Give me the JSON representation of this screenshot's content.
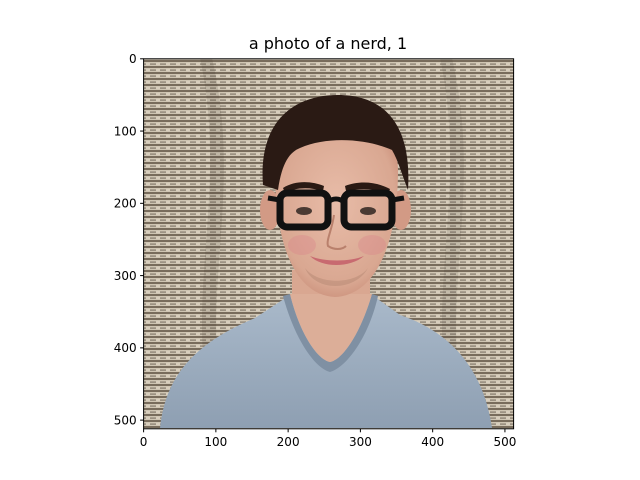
{
  "figure": {
    "title": "a photo of a nerd, 1"
  },
  "image": {
    "subject": "young man with dark hair wearing thick black rectangular glasses and a light blue-gray v-neck t-shirt, smiling, in front of a woven beige and brown fabric backdrop",
    "colors": {
      "fabric_light": "#cfc5b3",
      "fabric_dark": "#5a4e3f",
      "hair": "#2a1a14",
      "skin": "#e2b5a0",
      "skin_shadow": "#c98d78",
      "glasses": "#111111",
      "shirt": "#9fb0c2",
      "shirt_shadow": "#7f90a3",
      "lips": "#c86a70"
    }
  },
  "axes": {
    "x_ticks": [
      {
        "value": 0,
        "label": "0"
      },
      {
        "value": 100,
        "label": "100"
      },
      {
        "value": 200,
        "label": "200"
      },
      {
        "value": 300,
        "label": "300"
      },
      {
        "value": 400,
        "label": "400"
      },
      {
        "value": 500,
        "label": "500"
      }
    ],
    "y_ticks": [
      {
        "value": 0,
        "label": "0"
      },
      {
        "value": 100,
        "label": "100"
      },
      {
        "value": 200,
        "label": "200"
      },
      {
        "value": 300,
        "label": "300"
      },
      {
        "value": 400,
        "label": "400"
      },
      {
        "value": 500,
        "label": "500"
      }
    ],
    "x_range": [
      0,
      512
    ],
    "y_range": [
      0,
      512
    ]
  }
}
